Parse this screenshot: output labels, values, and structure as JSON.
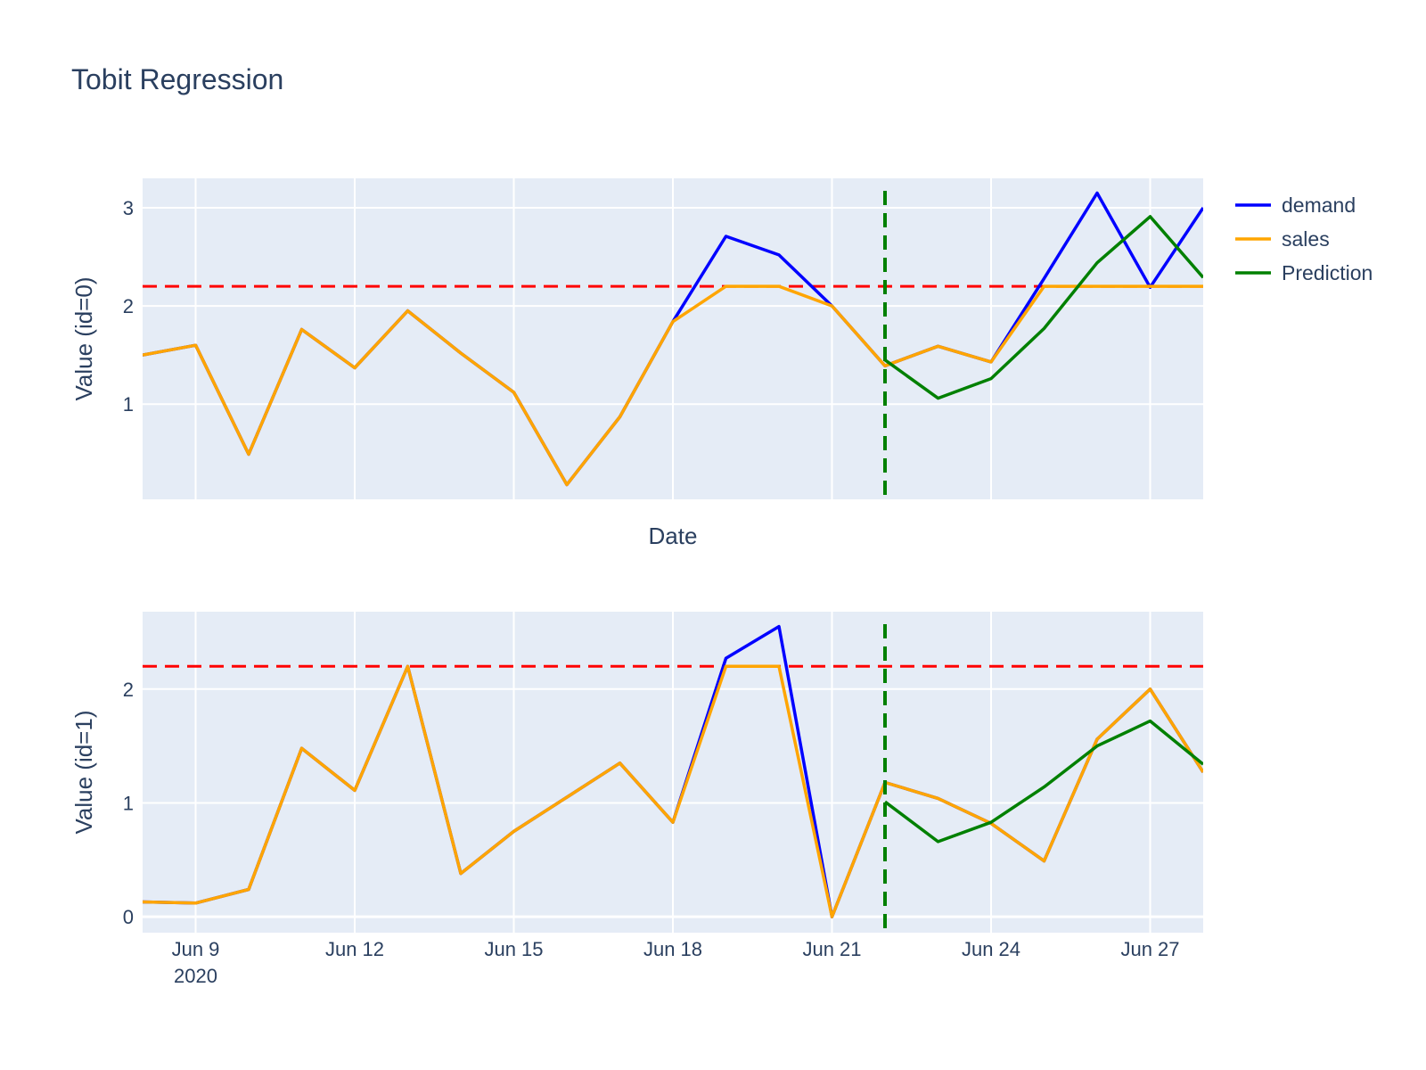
{
  "chart_data": {
    "type": "line",
    "title": "Tobit Regression",
    "colors": {
      "demand": "#0000ff",
      "sales": "#ffa500",
      "Prediction": "#008000",
      "threshold": "#ff0000",
      "forecast_start": "#008000",
      "plot_bg": "#e5ecf6",
      "grid": "#ffffff",
      "text": "#2a3f5f"
    },
    "x": [
      "2020-06-08",
      "2020-06-09",
      "2020-06-10",
      "2020-06-11",
      "2020-06-12",
      "2020-06-13",
      "2020-06-14",
      "2020-06-15",
      "2020-06-16",
      "2020-06-17",
      "2020-06-18",
      "2020-06-19",
      "2020-06-20",
      "2020-06-21",
      "2020-06-22",
      "2020-06-23",
      "2020-06-24",
      "2020-06-25",
      "2020-06-26",
      "2020-06-27",
      "2020-06-28"
    ],
    "x_tick_labels": [
      "Jun 9",
      "Jun 12",
      "Jun 15",
      "Jun 18",
      "Jun 21",
      "Jun 24",
      "Jun 27"
    ],
    "x_tick_year": "2020",
    "xlabel": "Date",
    "legend": {
      "placement": "top-right",
      "entries": [
        "demand",
        "sales",
        "Prediction"
      ]
    },
    "subplots": [
      {
        "ylabel": "Value (id=0)",
        "ylim": [
          0.03,
          3.3
        ],
        "yticks": [
          1,
          2,
          3
        ],
        "threshold": 2.2,
        "forecast_start": "2020-06-22",
        "series": [
          {
            "name": "demand",
            "values": [
              1.5,
              1.6,
              0.49,
              1.76,
              1.37,
              1.95,
              1.52,
              1.12,
              0.18,
              0.87,
              1.84,
              2.71,
              2.52,
              2.0,
              1.39,
              1.59,
              1.43,
              2.28,
              3.15,
              2.19,
              3.0
            ]
          },
          {
            "name": "sales",
            "values": [
              1.5,
              1.6,
              0.49,
              1.76,
              1.37,
              1.95,
              1.52,
              1.12,
              0.18,
              0.87,
              1.84,
              2.2,
              2.2,
              2.0,
              1.39,
              1.59,
              1.43,
              2.2,
              2.2,
              2.2,
              2.2
            ]
          },
          {
            "name": "Prediction",
            "x": [
              "2020-06-22",
              "2020-06-23",
              "2020-06-24",
              "2020-06-25",
              "2020-06-26",
              "2020-06-27",
              "2020-06-28"
            ],
            "values": [
              1.45,
              1.06,
              1.26,
              1.77,
              2.44,
              2.91,
              2.29
            ]
          }
        ]
      },
      {
        "ylabel": "Value (id=1)",
        "ylim": [
          -0.14,
          2.68
        ],
        "yticks": [
          0,
          1,
          2
        ],
        "threshold": 2.2,
        "forecast_start": "2020-06-22",
        "series": [
          {
            "name": "demand",
            "values": [
              0.13,
              0.12,
              0.24,
              1.48,
              1.11,
              2.2,
              0.38,
              0.75,
              1.05,
              1.35,
              0.83,
              2.27,
              2.55,
              0.0,
              1.18,
              1.04,
              0.82,
              0.49,
              1.56,
              2.0,
              1.27
            ]
          },
          {
            "name": "sales",
            "values": [
              0.13,
              0.12,
              0.24,
              1.48,
              1.11,
              2.2,
              0.38,
              0.75,
              1.05,
              1.35,
              0.83,
              2.2,
              2.2,
              0.0,
              1.18,
              1.04,
              0.82,
              0.49,
              1.56,
              2.0,
              1.27
            ]
          },
          {
            "name": "Prediction",
            "x": [
              "2020-06-22",
              "2020-06-23",
              "2020-06-24",
              "2020-06-25",
              "2020-06-26",
              "2020-06-27",
              "2020-06-28"
            ],
            "values": [
              1.01,
              0.66,
              0.83,
              1.14,
              1.5,
              1.72,
              1.34
            ]
          }
        ]
      }
    ]
  }
}
